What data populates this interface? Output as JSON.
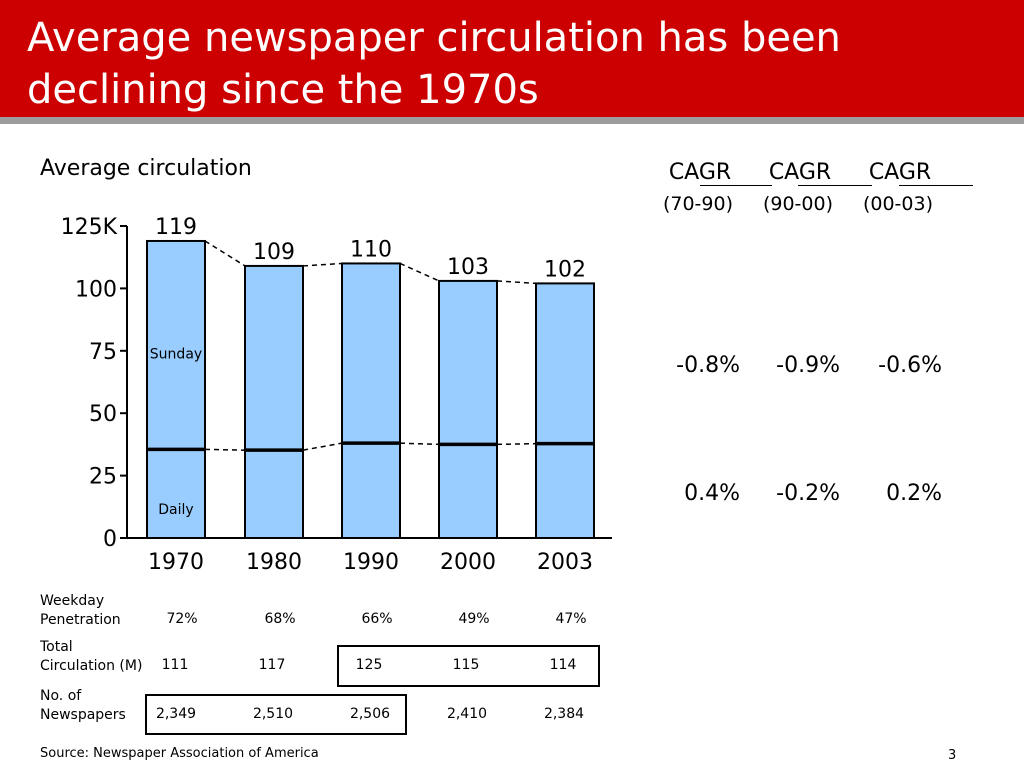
{
  "header": {
    "title": "Average newspaper circulation has been declining since the 1970s"
  },
  "colors": {
    "header_bg": "#cc0000",
    "bar_fill": "#99ccff",
    "bar_stroke": "#000000"
  },
  "chart_data": {
    "type": "bar",
    "title": "Average circulation",
    "categories": [
      "1970",
      "1980",
      "1990",
      "2000",
      "2003"
    ],
    "series": [
      {
        "name": "Daily",
        "values": [
          35.5,
          35.2,
          38,
          37.5,
          37.8
        ]
      },
      {
        "name": "Sunday",
        "values": [
          83.5,
          73.8,
          72,
          65.5,
          64.2
        ]
      }
    ],
    "totals": [
      119,
      109,
      110,
      103,
      102
    ],
    "total_labels": [
      "119",
      "109",
      "110",
      "103",
      "102"
    ],
    "yticks": [
      0,
      25,
      50,
      75,
      100,
      125
    ],
    "ytick_labels": [
      "0",
      "25",
      "50",
      "75",
      "100",
      "125K"
    ],
    "ylim": [
      0,
      125
    ],
    "stacked": true
  },
  "cagr": {
    "headers": [
      "CAGR",
      "CAGR",
      "CAGR"
    ],
    "periods": [
      "(70-90)",
      "(90-00)",
      "(00-03)"
    ],
    "sunday": [
      "-0.8%",
      "-0.9%",
      "-0.6%"
    ],
    "daily": [
      "0.4%",
      "-0.2%",
      "0.2%"
    ]
  },
  "table": {
    "weekday_penetration": {
      "label_line1": "Weekday",
      "label_line2": "Penetration",
      "values": [
        "72%",
        "68%",
        "66%",
        "49%",
        "47%"
      ]
    },
    "total_circulation": {
      "label_line1": "Total",
      "label_line2": "Circulation (M)",
      "values": [
        "111",
        "117",
        "125",
        "115",
        "114"
      ]
    },
    "newspapers": {
      "label_line1": "No. of",
      "label_line2": "Newspapers",
      "values": [
        "2,349",
        "2,510",
        "2,506",
        "2,410",
        "2,384"
      ]
    }
  },
  "footer": {
    "source": "Source: Newspaper Association of America",
    "page": "3"
  }
}
